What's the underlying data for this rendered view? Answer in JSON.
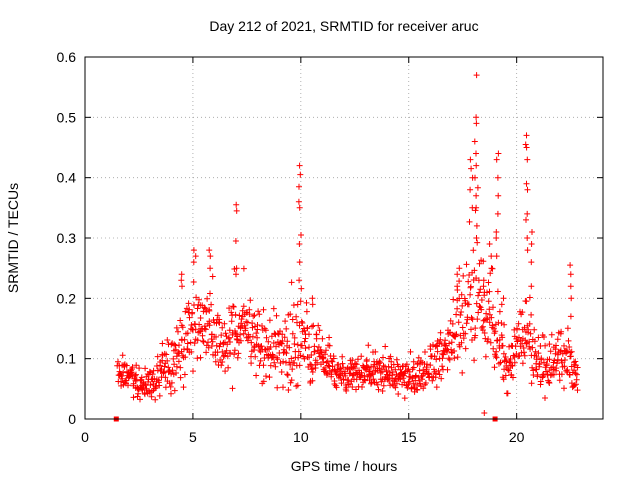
{
  "chart_data": {
    "type": "scatter",
    "title": "Day 212 of 2021, SRMTID for receiver aruc",
    "xlabel": "GPS time / hours",
    "ylabel": "SRMTID / TECUs",
    "xlim": [
      0,
      24
    ],
    "ylim": [
      0,
      0.6
    ],
    "x_ticks": [
      0,
      5,
      10,
      15,
      20
    ],
    "y_ticks": [
      0,
      0.1,
      0.2,
      0.3,
      0.4,
      0.5,
      0.6
    ],
    "x_tick_labels": [
      "0",
      "5",
      "10",
      "15",
      "20"
    ],
    "y_tick_labels": [
      "0",
      "0.1",
      "0.2",
      "0.3",
      "0.4",
      "0.5",
      "0.6"
    ],
    "grid": true,
    "marker": "plus",
    "color": "#ff0000",
    "profile": {
      "hours": [
        1.6,
        2.2,
        2.7,
        3.2,
        3.6,
        4.0,
        4.5,
        5.0,
        5.4,
        5.8,
        6.3,
        6.8,
        7.2,
        7.7,
        8.2,
        8.7,
        9.2,
        9.6,
        10.0,
        10.5,
        11.0,
        11.5,
        12.0,
        12.5,
        13.0,
        13.5,
        14.0,
        14.5,
        15.0,
        15.5,
        16.0,
        16.5,
        17.0,
        17.4,
        17.8,
        18.1,
        18.5,
        18.8,
        19.1,
        19.4,
        19.8,
        20.2,
        20.5,
        20.8,
        21.2,
        21.6,
        22.0,
        22.4,
        22.8
      ],
      "median": [
        0.072,
        0.075,
        0.045,
        0.06,
        0.085,
        0.1,
        0.12,
        0.15,
        0.16,
        0.15,
        0.12,
        0.13,
        0.15,
        0.14,
        0.12,
        0.11,
        0.12,
        0.12,
        0.14,
        0.11,
        0.09,
        0.08,
        0.075,
        0.075,
        0.08,
        0.08,
        0.075,
        0.07,
        0.065,
        0.07,
        0.085,
        0.11,
        0.14,
        0.17,
        0.18,
        0.2,
        0.17,
        0.15,
        0.14,
        0.1,
        0.085,
        0.13,
        0.14,
        0.1,
        0.09,
        0.09,
        0.1,
        0.1,
        0.07
      ],
      "spread": [
        0.025,
        0.025,
        0.02,
        0.03,
        0.035,
        0.045,
        0.05,
        0.06,
        0.06,
        0.06,
        0.05,
        0.06,
        0.06,
        0.05,
        0.045,
        0.04,
        0.045,
        0.05,
        0.06,
        0.045,
        0.035,
        0.03,
        0.025,
        0.025,
        0.03,
        0.03,
        0.025,
        0.025,
        0.025,
        0.03,
        0.035,
        0.045,
        0.06,
        0.07,
        0.08,
        0.09,
        0.07,
        0.06,
        0.06,
        0.045,
        0.04,
        0.06,
        0.06,
        0.045,
        0.04,
        0.04,
        0.045,
        0.045,
        0.03
      ]
    },
    "peaks": [
      {
        "x": 4.45,
        "y": [
          0.24,
          0.23,
          0.22
        ]
      },
      {
        "x": 5.1,
        "y": [
          0.28,
          0.27,
          0.26
        ]
      },
      {
        "x": 5.8,
        "y": [
          0.28,
          0.27,
          0.25
        ]
      },
      {
        "x": 7.05,
        "y": [
          0.355,
          0.345,
          0.295,
          0.25,
          0.24
        ]
      },
      {
        "x": 9.95,
        "y": [
          0.42,
          0.405,
          0.385,
          0.36,
          0.35,
          0.305,
          0.29,
          0.26,
          0.23
        ]
      },
      {
        "x": 10.5,
        "y": [
          0.2,
          0.19
        ]
      },
      {
        "x": 17.3,
        "y": [
          0.25,
          0.24,
          0.22
        ]
      },
      {
        "x": 17.9,
        "y": [
          0.43,
          0.415,
          0.4,
          0.38,
          0.35
        ]
      },
      {
        "x": 18.1,
        "y": [
          0.57,
          0.5,
          0.49,
          0.46,
          0.44,
          0.42,
          0.4,
          0.37,
          0.35,
          0.32,
          0.3
        ]
      },
      {
        "x": 18.45,
        "y": [
          0.23,
          0.22,
          0.21
        ]
      },
      {
        "x": 18.8,
        "y": [
          0.29,
          0.27,
          0.25
        ]
      },
      {
        "x": 19.1,
        "y": [
          0.44,
          0.43,
          0.4,
          0.37,
          0.34,
          0.31,
          0.3,
          0.27
        ]
      },
      {
        "x": 19.35,
        "y": [
          0.2,
          0.19
        ]
      },
      {
        "x": 20.45,
        "y": [
          0.47,
          0.455,
          0.45,
          0.43,
          0.39,
          0.38,
          0.34,
          0.33,
          0.3,
          0.28
        ]
      },
      {
        "x": 20.7,
        "y": [
          0.31,
          0.29,
          0.26,
          0.22
        ]
      },
      {
        "x": 22.5,
        "y": [
          0.255,
          0.24,
          0.22,
          0.2,
          0.17
        ]
      }
    ],
    "outliers": [
      {
        "x": 18.5,
        "y": 0.01
      },
      {
        "x": 1.45,
        "y": 0.0
      },
      {
        "x": 19.0,
        "y": 0.0
      }
    ],
    "x_range_points": [
      1.5,
      22.85
    ],
    "point_count": 1200,
    "seed": 212
  }
}
